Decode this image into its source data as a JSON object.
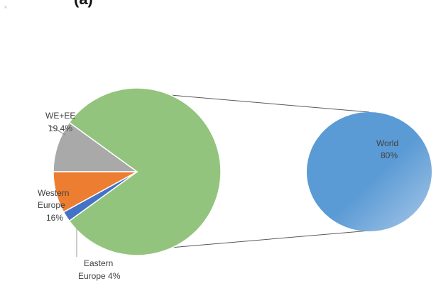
{
  "header": {
    "title_fragment": "(a)",
    "corner_mark": "×"
  },
  "chart_data": {
    "type": "pie",
    "subtype": "pie-of-pie",
    "slices": [
      {
        "name": "WE+EE",
        "label_value": "19.4%",
        "value": 19.4,
        "color": "#a9a9a9"
      },
      {
        "name": "Western Europe",
        "label_value": "16%",
        "value": 16,
        "color": "#ed7d31"
      },
      {
        "name": "Eastern Europe",
        "label_value": "4%",
        "value": 4,
        "color": "#4472c4"
      },
      {
        "name": "World",
        "label_value": "80%",
        "value": 80,
        "color": "#93c47d"
      }
    ],
    "secondary_pie": {
      "name": "World",
      "label_value": "80%",
      "value": 80,
      "color": "#5b9bd5"
    },
    "labels": {
      "we_ee_name": "WE+EE",
      "we_ee_value": "19.4%",
      "western_line1": "Western",
      "western_line2": "Europe",
      "western_value": "16%",
      "eastern_line1": "Eastern",
      "eastern_line2": "Europe 4%",
      "world_name": "World",
      "world_value": "80%"
    },
    "legend": "none",
    "grid": false
  }
}
